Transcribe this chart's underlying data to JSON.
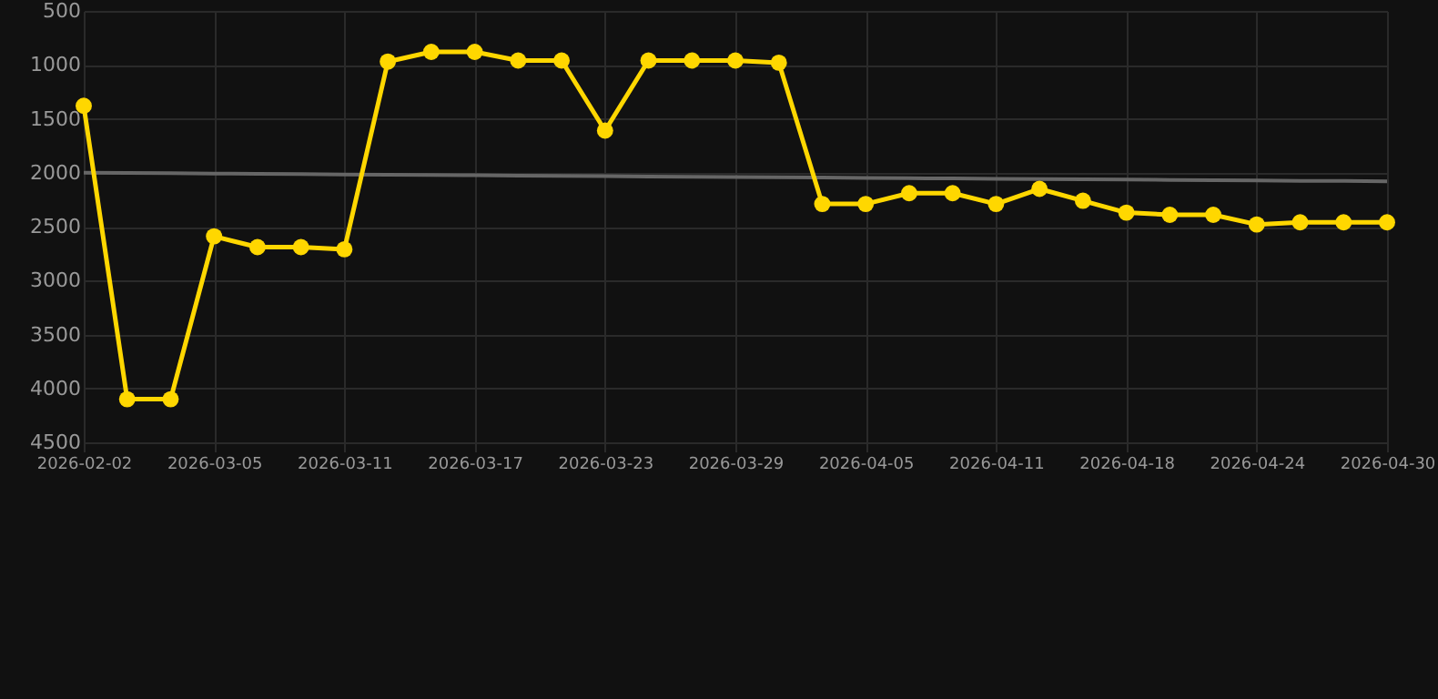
{
  "chart_data": {
    "type": "line",
    "categories": [
      "2026-02-02",
      null,
      null,
      "2026-03-05",
      null,
      null,
      "2026-03-11",
      null,
      null,
      "2026-03-17",
      null,
      null,
      "2026-03-23",
      null,
      null,
      "2026-03-29",
      null,
      null,
      "2026-04-05",
      null,
      null,
      "2026-04-11",
      null,
      null,
      "2026-04-18",
      null,
      null,
      "2026-04-24",
      null,
      null,
      "2026-04-30"
    ],
    "series": [
      {
        "color": "#ffd700",
        "marker": "circle",
        "values": [
          1380,
          4100,
          4100,
          2590,
          2690,
          2690,
          2710,
          970,
          880,
          880,
          960,
          960,
          1610,
          960,
          960,
          960,
          980,
          2290,
          2290,
          2190,
          2190,
          2290,
          2150,
          2260,
          2370,
          2390,
          2390,
          2480,
          2460,
          2460,
          2460
        ]
      },
      {
        "color": "#666666",
        "marker": "none",
        "values": [
          2000,
          2003,
          2005,
          2008,
          2011,
          2013,
          2016,
          2019,
          2021,
          2024,
          2027,
          2029,
          2032,
          2035,
          2037,
          2040,
          2043,
          2045,
          2048,
          2051,
          2053,
          2056,
          2059,
          2061,
          2064,
          2067,
          2069,
          2072,
          2075,
          2077,
          2080
        ]
      }
    ],
    "ylim": [
      4500,
      500
    ],
    "yticks": [
      500,
      1000,
      1500,
      2000,
      2500,
      3000,
      3500,
      4000,
      4500
    ],
    "grid": true
  }
}
